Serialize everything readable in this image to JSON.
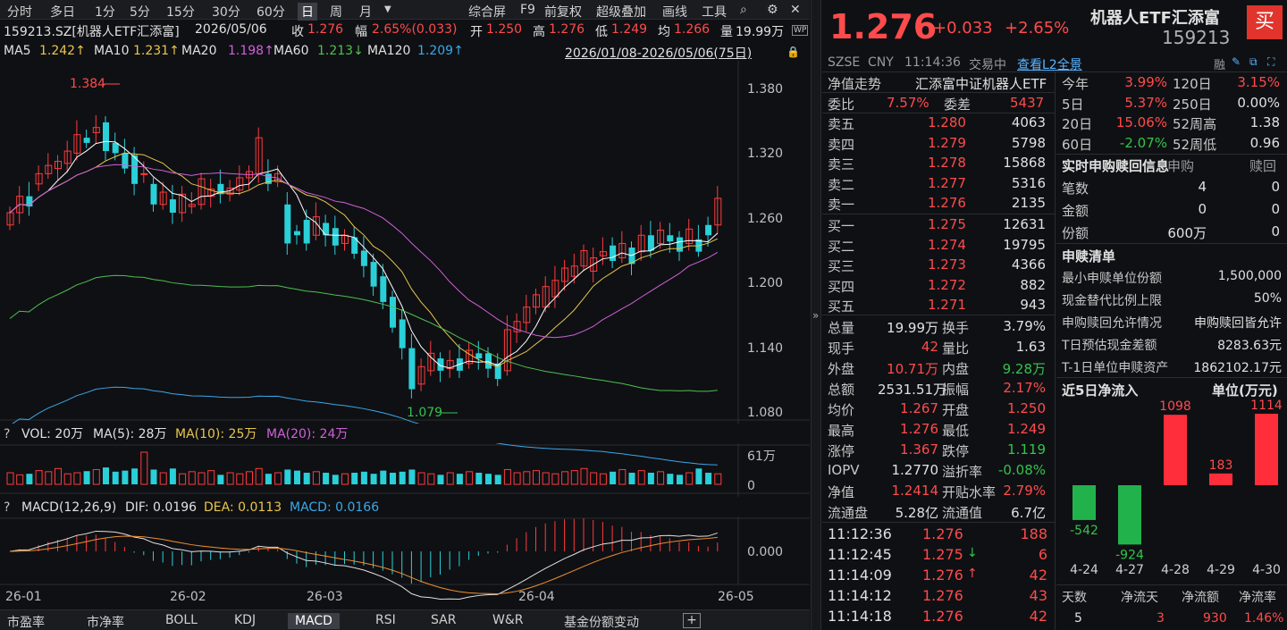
{
  "toolbar": {
    "periods": [
      "分时",
      "多日",
      "1分",
      "5分",
      "15分",
      "30分",
      "60分",
      "日",
      "周",
      "月"
    ],
    "selected": "日",
    "tools": [
      "综合屏",
      "F9",
      "前复权",
      "超级叠加",
      "画线",
      "工具"
    ]
  },
  "info": {
    "code": "159213.SZ[机器人ETF汇添富]",
    "date": "2026/05/06",
    "close_label": "收",
    "close": "1.276",
    "range_label": "幅",
    "range": "2.65%(0.033)",
    "open_label": "开",
    "open": "1.250",
    "high_label": "高",
    "high": "1.276",
    "low_label": "低",
    "low": "1.249",
    "avg_label": "均",
    "avg": "1.266",
    "vol_label": "量",
    "vol": "19.99万"
  },
  "ma": {
    "ma5": "MA5",
    "ma5v": "1.242↑",
    "ma10": "MA10",
    "ma10v": "1.231↑",
    "ma20": "MA20",
    "ma20v": "1.198↑",
    "ma60": "MA60",
    "ma60v": "1.213↓",
    "ma120": "MA120",
    "ma120v": "1.209↑",
    "period": "2026/01/08-2026/05/06(75日)"
  },
  "chart_labels": {
    "price_ticks": [
      "1.380",
      "1.320",
      "1.260",
      "1.200",
      "1.140",
      "1.080"
    ],
    "high_mark": "1.384",
    "low_mark": "1.079",
    "vol_ticks": [
      "61万",
      "0"
    ],
    "macd_ticks": [
      "0.000"
    ],
    "dates": [
      "26-01",
      "26-02",
      "26-03",
      "26-04",
      "26-05"
    ]
  },
  "vol": {
    "q": "?",
    "label": "VOL: 20万",
    "ma5": "MA(5): 28万",
    "ma10": "MA(10): 25万",
    "ma20": "MA(20): 24万"
  },
  "macd": {
    "q": "?",
    "label": "MACD(12,26,9)",
    "dif": "DIF: 0.0196",
    "dea": "DEA: 0.0113",
    "macd": "MACD: 0.0166"
  },
  "bottom_tabs": [
    "市盈率",
    "市净率",
    "BOLL",
    "KDJ",
    "MACD",
    "RSI",
    "SAR",
    "W&R",
    "基金份额变动"
  ],
  "bottom_selected": "MACD",
  "quote": {
    "price": "1.276",
    "chg": "+0.033",
    "pct": "+2.65%",
    "name": "机器人ETF汇添富",
    "code": "159213",
    "buy": "买",
    "market": "SZSE",
    "cur": "CNY",
    "time": "11:14:36",
    "status": "交易中",
    "l2": "查看L2全景",
    "rong": "融"
  },
  "nav": {
    "label": "净值走势",
    "name": "汇添富中证机器人ETF"
  },
  "book": {
    "wb_label": "委比",
    "wb": "7.57%",
    "wc_label": "委差",
    "wc": "5437",
    "asks": [
      {
        "l": "卖五",
        "p": "1.280",
        "v": "4063"
      },
      {
        "l": "卖四",
        "p": "1.279",
        "v": "5798"
      },
      {
        "l": "卖三",
        "p": "1.278",
        "v": "15868"
      },
      {
        "l": "卖二",
        "p": "1.277",
        "v": "5316"
      },
      {
        "l": "卖一",
        "p": "1.276",
        "v": "2135"
      }
    ],
    "bids": [
      {
        "l": "买一",
        "p": "1.275",
        "v": "12631"
      },
      {
        "l": "买二",
        "p": "1.274",
        "v": "19795"
      },
      {
        "l": "买三",
        "p": "1.273",
        "v": "4366"
      },
      {
        "l": "买四",
        "p": "1.272",
        "v": "882"
      },
      {
        "l": "买五",
        "p": "1.271",
        "v": "943"
      }
    ]
  },
  "stats": [
    {
      "a": "总量",
      "av": "19.99万",
      "b": "换手",
      "bv": "3.79%"
    },
    {
      "a": "现手",
      "av": "42",
      "b": "量比",
      "bv": "1.63"
    },
    {
      "a": "外盘",
      "av": "10.71万",
      "b": "内盘",
      "bv": "9.28万"
    },
    {
      "a": "总额",
      "av": "2531.51万",
      "b": "振幅",
      "bv": "2.17%"
    },
    {
      "a": "均价",
      "av": "1.267",
      "b": "开盘",
      "bv": "1.250"
    },
    {
      "a": "最高",
      "av": "1.276",
      "b": "最低",
      "bv": "1.249"
    },
    {
      "a": "涨停",
      "av": "1.367",
      "b": "跌停",
      "bv": "1.119"
    },
    {
      "a": "IOPV",
      "av": "1.2770",
      "b": "溢折率",
      "bv": "-0.08%"
    },
    {
      "a": "净值",
      "av": "1.2414",
      "b": "开贴水率",
      "bv": "2.79%"
    },
    {
      "a": "流通盘",
      "av": "5.28亿",
      "b": "流通值",
      "bv": "6.7亿"
    }
  ],
  "ticks": [
    {
      "t": "11:12:36",
      "p": "1.276",
      "a": "",
      "v": "188"
    },
    {
      "t": "11:12:45",
      "p": "1.275",
      "a": "↓",
      "v": "6"
    },
    {
      "t": "11:14:09",
      "p": "1.276",
      "a": "↑",
      "v": "42"
    },
    {
      "t": "11:14:12",
      "p": "1.276",
      "a": "",
      "v": "43"
    },
    {
      "t": "11:14:18",
      "p": "1.276",
      "a": "",
      "v": "42"
    }
  ],
  "perf": [
    {
      "a": "今年",
      "av": "3.99%",
      "b": "120日",
      "bv": "3.15%"
    },
    {
      "a": "5日",
      "av": "5.37%",
      "b": "250日",
      "bv": "0.00%"
    },
    {
      "a": "20日",
      "av": "15.06%",
      "b": "52周高",
      "bv": "1.38"
    },
    {
      "a": "60日",
      "av": "-2.07%",
      "b": "52周低",
      "bv": "0.96"
    }
  ],
  "rt": {
    "title": "实时申购赎回信息",
    "c1": "申购",
    "c2": "赎回",
    "rows": [
      {
        "l": "笔数",
        "a": "4",
        "b": "0"
      },
      {
        "l": "金额",
        "a": "0",
        "b": "0"
      },
      {
        "l": "份额",
        "a": "600万",
        "b": "0"
      }
    ]
  },
  "sgqd": {
    "title": "申赎清单",
    "rows": [
      {
        "l": "最小申赎单位份额",
        "v": "1,500,000"
      },
      {
        "l": "现金替代比例上限",
        "v": "50%"
      },
      {
        "l": "申购赎回允许情况",
        "v": "申购赎回皆允许"
      },
      {
        "l": "T日预估现金差额",
        "v": "8283.63元"
      },
      {
        "l": "T-1日单位申赎资产",
        "v": "1862102.17元"
      }
    ]
  },
  "flow": {
    "title": "近5日净流入",
    "unit": "单位(万元)",
    "footer_labels": [
      "天数",
      "净流天",
      "净流额",
      "净流率"
    ],
    "footer_vals": [
      "5",
      "3",
      "930",
      "1.46%"
    ]
  },
  "chart_data": {
    "type": "bar",
    "title": "近5日净流入",
    "categories": [
      "4-24",
      "4-27",
      "4-28",
      "4-29",
      "4-30"
    ],
    "values": [
      -542,
      -924,
      1098,
      183,
      1114
    ],
    "ylabel": "单位(万元)"
  },
  "colors": {
    "up": "#ff3b3b",
    "down": "#2ad0d8",
    "ma5": "#ffffff",
    "ma10": "#e8c64a",
    "ma20": "#d060d8",
    "ma60": "#4ec04e",
    "ma120": "#3aa8e8"
  }
}
